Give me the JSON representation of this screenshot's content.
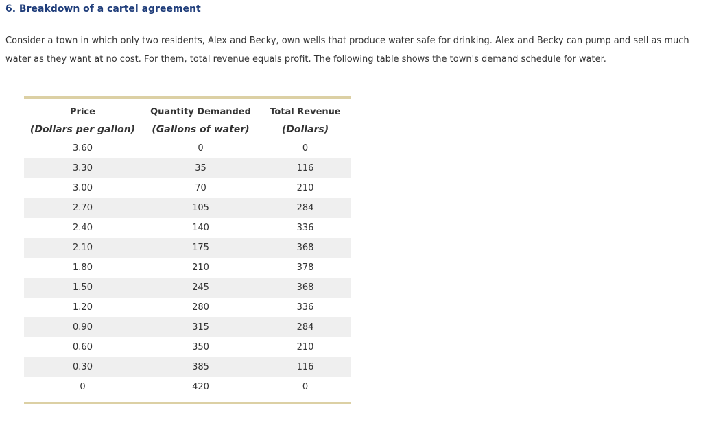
{
  "title": "6. Breakdown of a cartel agreement",
  "intro": "Consider a town in which only two residents, Alex and Becky, own wells that produce water safe for drinking. Alex and Becky can pump and sell as much water as they want at no cost. For them, total revenue equals profit. The following table shows the town's demand schedule for water.",
  "table": {
    "headers": [
      {
        "label": "Price",
        "unit": "(Dollars per gallon)"
      },
      {
        "label": "Quantity Demanded",
        "unit": "(Gallons of water)"
      },
      {
        "label": "Total Revenue",
        "unit": "(Dollars)"
      }
    ],
    "rows": [
      [
        "3.60",
        "0",
        "0"
      ],
      [
        "3.30",
        "35",
        "116"
      ],
      [
        "3.00",
        "70",
        "210"
      ],
      [
        "2.70",
        "105",
        "284"
      ],
      [
        "2.40",
        "140",
        "336"
      ],
      [
        "2.10",
        "175",
        "368"
      ],
      [
        "1.80",
        "210",
        "378"
      ],
      [
        "1.50",
        "245",
        "368"
      ],
      [
        "1.20",
        "280",
        "336"
      ],
      [
        "0.90",
        "315",
        "284"
      ],
      [
        "0.60",
        "350",
        "210"
      ],
      [
        "0.30",
        "385",
        "116"
      ],
      [
        "0",
        "420",
        "0"
      ]
    ]
  },
  "colors": {
    "title": "#1f3d7a",
    "rule": "#dcd0a4",
    "stripe": "#efefef"
  }
}
